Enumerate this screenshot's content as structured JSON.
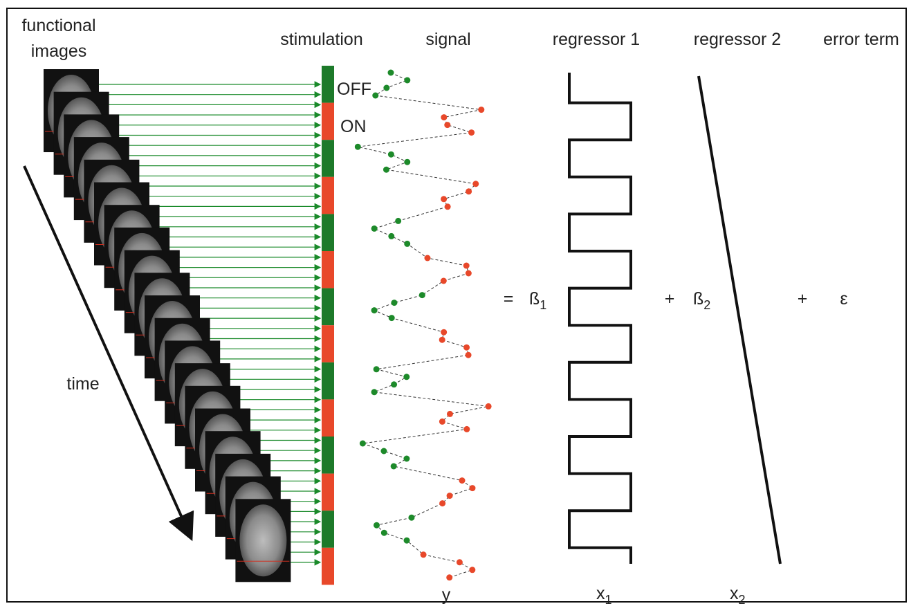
{
  "labels": {
    "functional_images": [
      "functional",
      "images"
    ],
    "time": "time",
    "off": "OFF",
    "on": "ON"
  },
  "column_headers": {
    "stimulation": "stimulation",
    "signal": "signal",
    "regressor_1": "regressor 1",
    "regressor_2": "regressor 2",
    "error_term": "error term"
  },
  "equation": {
    "equals": "=",
    "beta1": {
      "symbol": "ß",
      "subscript": "1"
    },
    "plus1": "+",
    "beta2": {
      "symbol": "ß",
      "subscript": "2"
    },
    "plus2": "+",
    "epsilon": "ε"
  },
  "bottom_labels": {
    "y": "y",
    "x1": {
      "symbol": "x",
      "subscript": "1"
    },
    "x2": {
      "symbol": "x",
      "subscript": "2"
    }
  }
}
